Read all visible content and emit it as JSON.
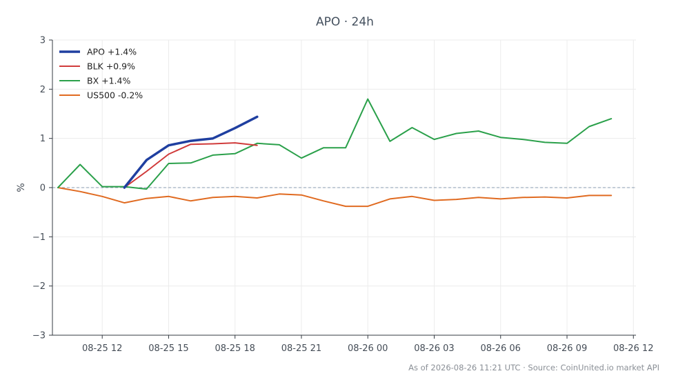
{
  "chart_data": {
    "type": "line",
    "title": "APO · 24h",
    "xlabel": "",
    "ylabel": "%",
    "ylim": [
      -3,
      3
    ],
    "yticks": [
      {
        "value": 3,
        "label": "3"
      },
      {
        "value": 2,
        "label": "2"
      },
      {
        "value": 1,
        "label": "1"
      },
      {
        "value": 0,
        "label": "0"
      },
      {
        "value": -1,
        "label": "−1"
      },
      {
        "value": -2,
        "label": "−2"
      },
      {
        "value": -3,
        "label": "−3"
      }
    ],
    "xlim": [
      "2026-08-25T09:45",
      "2026-08-26T12:07"
    ],
    "xticks": [
      {
        "value": "2026-08-25T12:00",
        "label": "08-25 12"
      },
      {
        "value": "2026-08-25T15:00",
        "label": "08-25 15"
      },
      {
        "value": "2026-08-25T18:00",
        "label": "08-25 18"
      },
      {
        "value": "2026-08-25T21:00",
        "label": "08-25 21"
      },
      {
        "value": "2026-08-26T00:00",
        "label": "08-26 00"
      },
      {
        "value": "2026-08-26T03:00",
        "label": "08-26 03"
      },
      {
        "value": "2026-08-26T06:00",
        "label": "08-26 06"
      },
      {
        "value": "2026-08-26T09:00",
        "label": "08-26 09"
      },
      {
        "value": "2026-08-26T12:00",
        "label": "08-26 12"
      }
    ],
    "grid": true,
    "legend_position": "top-left",
    "reference_line": 0,
    "series": [
      {
        "name": "APO +1.4%",
        "color": "#1f3fa0",
        "x": [
          "2026-08-25T13:00",
          "2026-08-25T14:00",
          "2026-08-25T15:00",
          "2026-08-25T16:00",
          "2026-08-25T17:00",
          "2026-08-25T18:00",
          "2026-08-25T19:00"
        ],
        "y": [
          0,
          0.56,
          0.86,
          0.95,
          1.0,
          1.21,
          1.44
        ]
      },
      {
        "name": "BLK +0.9%",
        "color": "#d03a3a",
        "x": [
          "2026-08-25T13:00",
          "2026-08-25T14:00",
          "2026-08-25T15:00",
          "2026-08-25T16:00",
          "2026-08-25T17:00",
          "2026-08-25T18:00",
          "2026-08-25T19:00"
        ],
        "y": [
          0,
          0.33,
          0.68,
          0.88,
          0.89,
          0.91,
          0.86
        ]
      },
      {
        "name": "BX +1.4%",
        "color": "#2aa04a",
        "x": [
          "2026-08-25T10:00",
          "2026-08-25T11:00",
          "2026-08-25T12:00",
          "2026-08-25T13:00",
          "2026-08-25T14:00",
          "2026-08-25T15:00",
          "2026-08-25T16:00",
          "2026-08-25T17:00",
          "2026-08-25T18:00",
          "2026-08-25T19:00",
          "2026-08-25T20:00",
          "2026-08-25T21:00",
          "2026-08-25T22:00",
          "2026-08-25T23:00",
          "2026-08-26T00:00",
          "2026-08-26T01:00",
          "2026-08-26T02:00",
          "2026-08-26T03:00",
          "2026-08-26T04:00",
          "2026-08-26T05:00",
          "2026-08-26T06:00",
          "2026-08-26T07:00",
          "2026-08-26T08:00",
          "2026-08-26T09:00",
          "2026-08-26T10:00",
          "2026-08-26T11:00"
        ],
        "y": [
          0,
          0.47,
          0.02,
          0.02,
          -0.03,
          0.49,
          0.5,
          0.66,
          0.69,
          0.9,
          0.87,
          0.6,
          0.81,
          0.81,
          1.8,
          0.94,
          1.22,
          0.98,
          1.1,
          1.15,
          1.02,
          0.98,
          0.92,
          0.9,
          1.24,
          1.4
        ]
      },
      {
        "name": "US500 -0.2%",
        "color": "#e06a20",
        "x": [
          "2026-08-25T10:00",
          "2026-08-25T11:00",
          "2026-08-25T12:00",
          "2026-08-25T13:00",
          "2026-08-25T14:00",
          "2026-08-25T15:00",
          "2026-08-25T16:00",
          "2026-08-25T17:00",
          "2026-08-25T18:00",
          "2026-08-25T19:00",
          "2026-08-25T20:00",
          "2026-08-25T21:00",
          "2026-08-25T22:00",
          "2026-08-25T23:00",
          "2026-08-26T00:00",
          "2026-08-26T01:00",
          "2026-08-26T02:00",
          "2026-08-26T03:00",
          "2026-08-26T04:00",
          "2026-08-26T05:00",
          "2026-08-26T06:00",
          "2026-08-26T07:00",
          "2026-08-26T08:00",
          "2026-08-26T09:00",
          "2026-08-26T10:00",
          "2026-08-26T11:00"
        ],
        "y": [
          0,
          -0.08,
          -0.18,
          -0.31,
          -0.22,
          -0.18,
          -0.27,
          -0.2,
          -0.18,
          -0.21,
          -0.13,
          -0.15,
          -0.27,
          -0.38,
          -0.38,
          -0.23,
          -0.18,
          -0.26,
          -0.24,
          -0.2,
          -0.23,
          -0.2,
          -0.19,
          -0.21,
          -0.16,
          -0.16
        ]
      }
    ]
  },
  "footer": "As of 2026-08-26 11:21 UTC · Source: CoinUnited.io market API"
}
